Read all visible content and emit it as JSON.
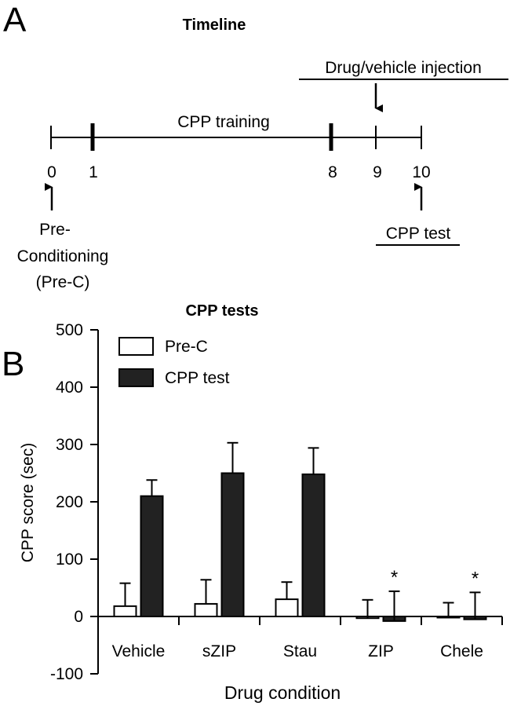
{
  "panel_a": {
    "letter": "A",
    "title": "Timeline",
    "training_label": "CPP training",
    "injection_label": "Drug/vehicle injection",
    "test_label": "CPP test",
    "ticks": [
      "0",
      "1",
      "8",
      "9",
      "10"
    ],
    "pre_c_lines": [
      "Pre-",
      "Conditioning",
      "(Pre-C)"
    ]
  },
  "panel_b": {
    "letter": "B",
    "title": "CPP tests"
  },
  "chart_data": {
    "type": "bar",
    "title": "CPP tests",
    "xlabel": "Drug condition",
    "ylabel": "CPP score (sec)",
    "ylim": [
      -100,
      500
    ],
    "yticks": [
      -100,
      0,
      100,
      200,
      300,
      400,
      500
    ],
    "categories": [
      "Vehicle",
      "sZIP",
      "Stau",
      "ZIP",
      "Chele"
    ],
    "series": [
      {
        "name": "Pre-C",
        "color": "#ffffff",
        "values": [
          18,
          22,
          30,
          -3,
          -2
        ],
        "error": [
          40,
          42,
          30,
          32,
          26
        ]
      },
      {
        "name": "CPP test",
        "color": "#222222",
        "values": [
          210,
          250,
          248,
          -8,
          -5
        ],
        "error": [
          28,
          53,
          46,
          52,
          47
        ]
      }
    ],
    "annotations": [
      {
        "category": "ZIP",
        "series": "CPP test",
        "text": "*"
      },
      {
        "category": "Chele",
        "series": "CPP test",
        "text": "*"
      }
    ],
    "legend": "top-left"
  }
}
